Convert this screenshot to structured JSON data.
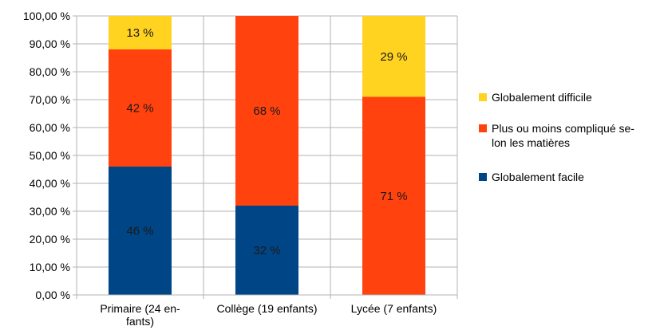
{
  "chart_data": {
    "type": "bar",
    "stacked": true,
    "categories": [
      "Primaire (24 enfants)",
      "Collège (19 enfants)",
      "Lycée (7 enfants)"
    ],
    "category_label_lines": [
      [
        "Primaire (24 en-",
        "fants)"
      ],
      [
        "Collège (19 enfants)"
      ],
      [
        "Lycée (7 enfants)"
      ]
    ],
    "series": [
      {
        "name": "Globalement facile",
        "color": "#004586",
        "values": [
          46,
          32,
          0
        ],
        "labels": [
          "46 %",
          "32 %",
          ""
        ]
      },
      {
        "name": "Plus ou moins compliqué selon les matières",
        "legend_lines": [
          "Plus ou moins compliqué se-",
          "lon les matières"
        ],
        "color": "#ff420e",
        "values": [
          42,
          68,
          71
        ],
        "labels": [
          "42 %",
          "68 %",
          "71 %"
        ]
      },
      {
        "name": "Globalement difficile",
        "color": "#ffd320",
        "values": [
          13,
          0,
          29
        ],
        "labels": [
          "13 %",
          "",
          "29 %"
        ]
      }
    ],
    "legend_order": [
      2,
      1,
      0
    ],
    "ylim": [
      0,
      100
    ],
    "yticks": [
      0,
      10,
      20,
      30,
      40,
      50,
      60,
      70,
      80,
      90,
      100
    ],
    "ytick_labels": [
      "0,00 %",
      "10,00 %",
      "20,00 %",
      "30,00 %",
      "40,00 %",
      "50,00 %",
      "60,00 %",
      "70,00 %",
      "80,00 %",
      "90,00 %",
      "100,00 %"
    ],
    "grid": true,
    "legend_position": "right",
    "title": "",
    "xlabel": "",
    "ylabel": ""
  }
}
